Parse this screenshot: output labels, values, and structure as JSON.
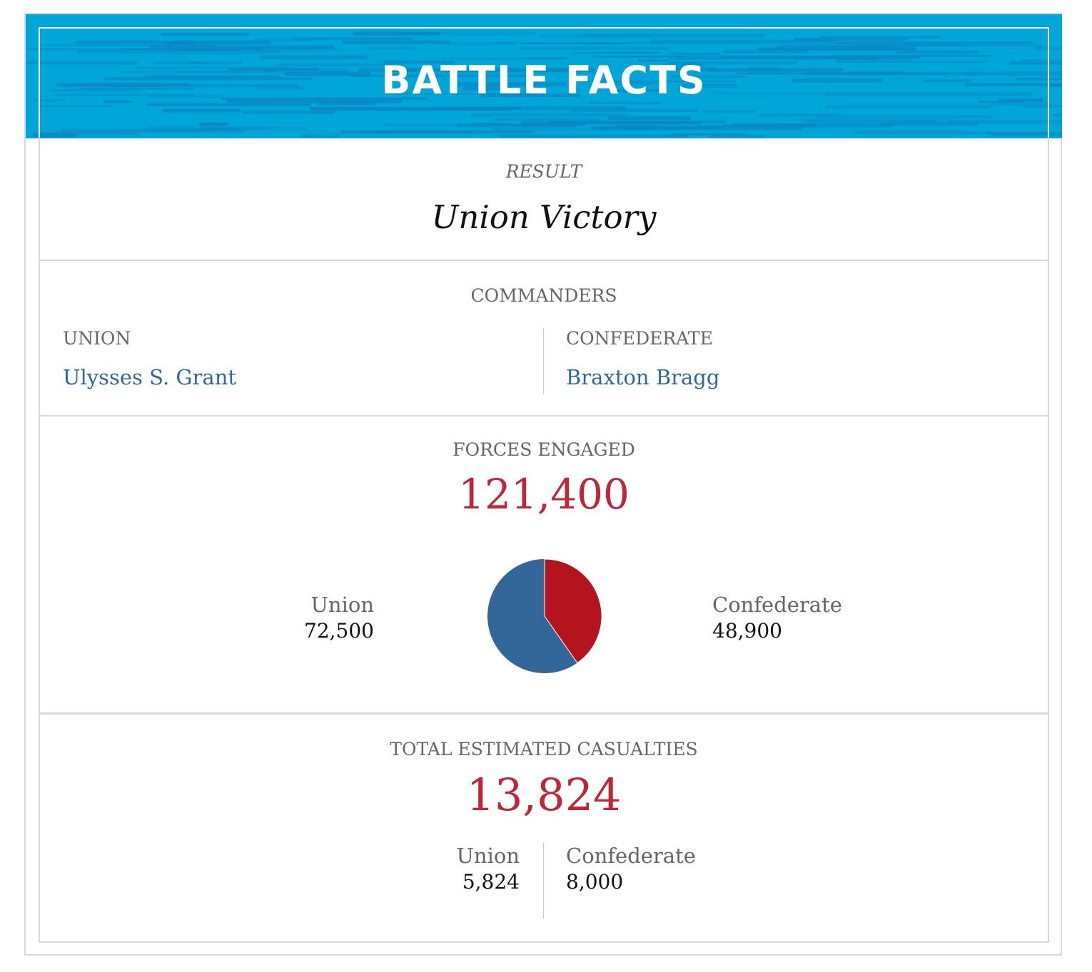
{
  "header": {
    "title": "BATTLE FACTS"
  },
  "result": {
    "label": "RESULT",
    "value": "Union Victory"
  },
  "commanders": {
    "title": "COMMANDERS",
    "union": {
      "side": "UNION",
      "name": "Ulysses S. Grant"
    },
    "confederate": {
      "side": "CONFEDERATE",
      "name": "Braxton Bragg"
    }
  },
  "forces": {
    "title": "FORCES ENGAGED",
    "total": "121,400",
    "union": {
      "name": "Union",
      "value": "72,500"
    },
    "confederate": {
      "name": "Confederate",
      "value": "48,900"
    }
  },
  "casualties": {
    "title": "TOTAL ESTIMATED CASUALTIES",
    "total": "13,824",
    "union": {
      "name": "Union",
      "value": "5,824"
    },
    "confederate": {
      "name": "Confederate",
      "value": "8,000"
    }
  },
  "colors": {
    "header_bg": "#00a6d8",
    "accent_red": "#c0253a",
    "link_blue": "#336699",
    "pie_union": "#336699",
    "pie_confederate": "#b3141e"
  },
  "chart_data": {
    "type": "pie",
    "categories": [
      "Union",
      "Confederate"
    ],
    "values": [
      72500,
      48900
    ]
  }
}
